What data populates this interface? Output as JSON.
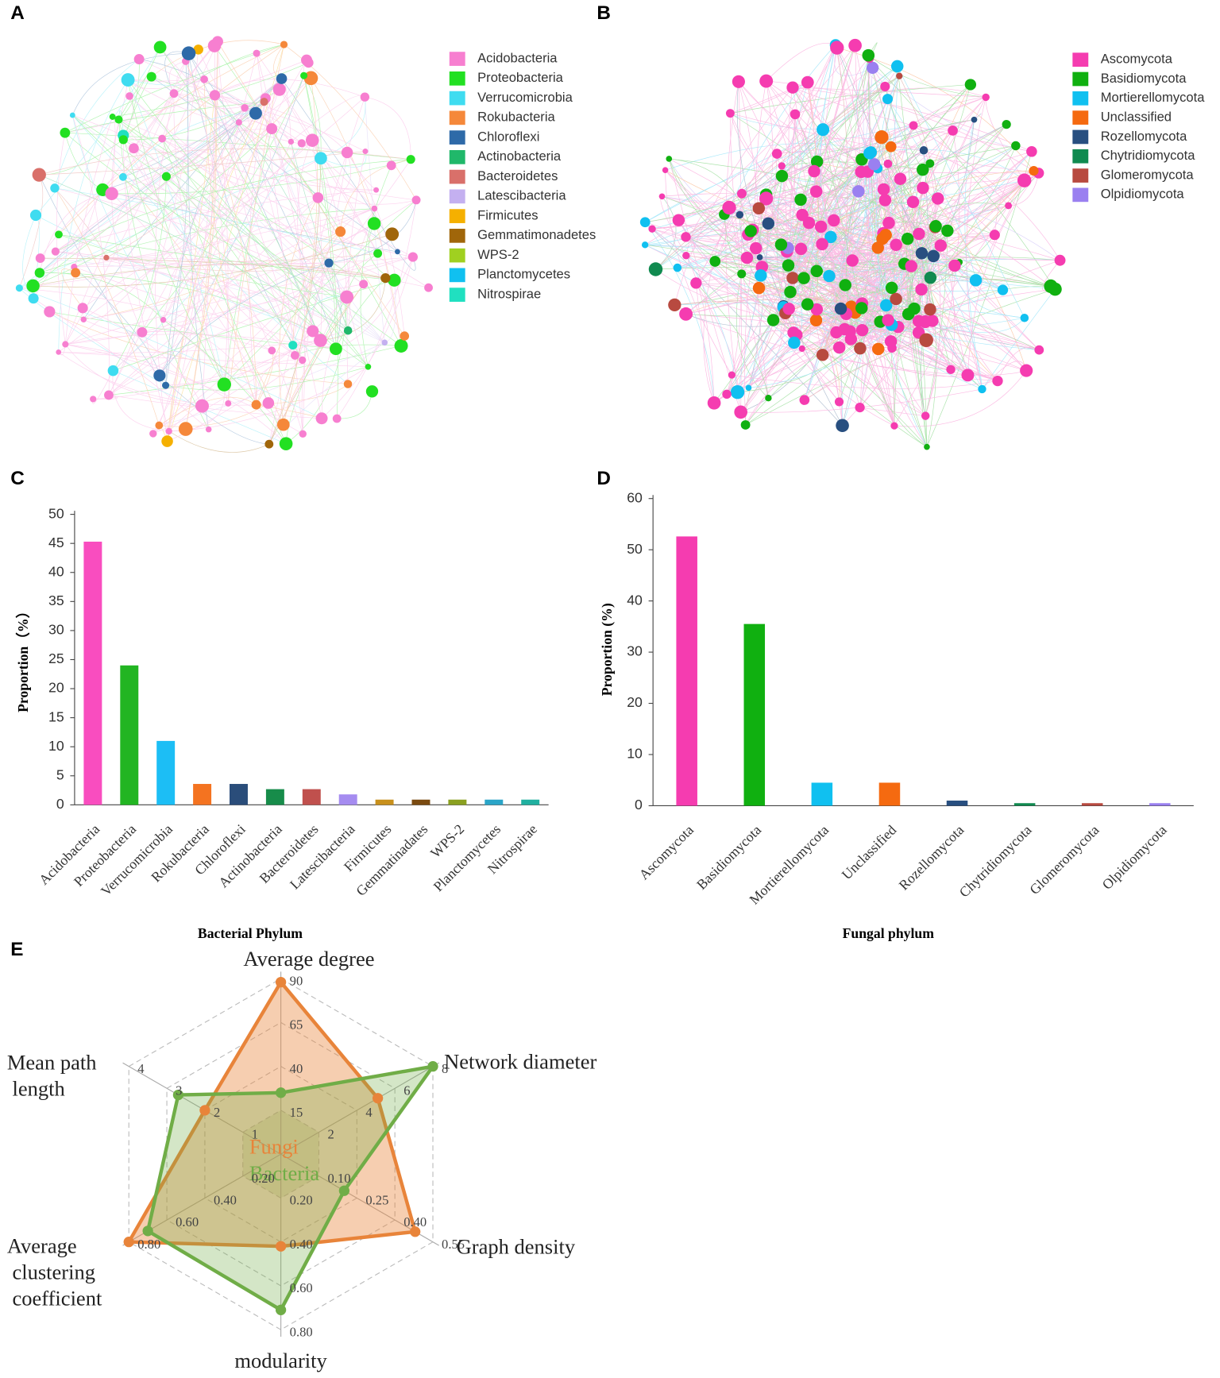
{
  "chart_data": [
    {
      "panel": "A",
      "type": "network",
      "series": [
        {
          "name": "Acidobacteria",
          "color": "#f77fd0"
        },
        {
          "name": "Proteobacteria",
          "color": "#22e022"
        },
        {
          "name": "Verrucomicrobia",
          "color": "#3fdcf0"
        },
        {
          "name": "Rokubacteria",
          "color": "#f5883a"
        },
        {
          "name": "Chloroflexi",
          "color": "#2e6aa8"
        },
        {
          "name": "Actinobacteria",
          "color": "#20b86a"
        },
        {
          "name": "Bacteroidetes",
          "color": "#d9706a"
        },
        {
          "name": "Latescibacteria",
          "color": "#c4b0f0"
        },
        {
          "name": "Firmicutes",
          "color": "#f5b000"
        },
        {
          "name": "Gemmatimonadetes",
          "color": "#a0660a"
        },
        {
          "name": "WPS-2",
          "color": "#a0d020"
        },
        {
          "name": "Planctomycetes",
          "color": "#10c0f0"
        },
        {
          "name": "Nitrospirae",
          "color": "#20e0c0"
        }
      ]
    },
    {
      "panel": "B",
      "type": "network",
      "series": [
        {
          "name": "Ascomycota",
          "color": "#f53cb0"
        },
        {
          "name": "Basidiomycota",
          "color": "#10b010"
        },
        {
          "name": "Mortierellomycota",
          "color": "#10c0f0"
        },
        {
          "name": "Unclassified",
          "color": "#f56a10"
        },
        {
          "name": "Rozellomycota",
          "color": "#284f80"
        },
        {
          "name": "Chytridiomycota",
          "color": "#108a50"
        },
        {
          "name": "Glomeromycota",
          "color": "#b84a40"
        },
        {
          "name": "Olpidiomycota",
          "color": "#9a80f0"
        }
      ]
    },
    {
      "panel": "C",
      "type": "bar",
      "x_label": "Bacterial Phylum",
      "y_label": "Proportion（%）",
      "categories": [
        "Acidobacteria",
        "Proteobacteria",
        "Verrucomicrobia",
        "Rokubacteria",
        "Chloroflexi",
        "Actinobacteria",
        "Bacteroidetes",
        "Latescibacteria",
        "Firmicutes",
        "Gemmatinadates",
        "WPS-2",
        "Planctomycetes",
        "Nitrospirae"
      ],
      "values": [
        45.3,
        24,
        11,
        3.6,
        3.6,
        2.7,
        2.7,
        1.8,
        0.9,
        0.9,
        0.9,
        0.9,
        0.9
      ],
      "colors": [
        "#f94dbf",
        "#22b522",
        "#1cbef5",
        "#f47320",
        "#2a4d7a",
        "#178c4a",
        "#c0504d",
        "#a58cf0",
        "#c8901c",
        "#7a4a10",
        "#8aa020",
        "#2aa5c8",
        "#20b0a0"
      ],
      "ylim": [
        0,
        50
      ],
      "yticks": [
        0,
        5,
        10,
        15,
        20,
        25,
        30,
        35,
        40,
        45,
        50
      ]
    },
    {
      "panel": "D",
      "type": "bar",
      "x_label": "Fungal phylum",
      "y_label": "Proportion (%)",
      "categories": [
        "Ascomycota",
        "Basidiomycota",
        "Mortierellomycota",
        "Unclassified",
        "Rozellomycota",
        "Chytridiomycota",
        "Glomeromycota",
        "Olpidiomycota"
      ],
      "values": [
        52.6,
        35.5,
        4.5,
        4.5,
        1,
        0.5,
        0.5,
        0.5
      ],
      "colors": [
        "#f53cb0",
        "#10b010",
        "#10c0f0",
        "#f56a10",
        "#284f80",
        "#108a50",
        "#b84a40",
        "#9a80f0"
      ],
      "ylim": [
        0,
        60
      ],
      "yticks": [
        0,
        10,
        20,
        30,
        40,
        50,
        60
      ]
    },
    {
      "panel": "E",
      "type": "radar",
      "axes": [
        {
          "name": "Average degree",
          "lim": [
            -10,
            90
          ],
          "ticks": [
            15,
            40,
            65,
            90
          ]
        },
        {
          "name": "Network diameter",
          "lim": [
            0,
            8
          ],
          "ticks": [
            2,
            4,
            6,
            8
          ]
        },
        {
          "name": "Graph density",
          "lim": [
            -0.05,
            0.55
          ],
          "ticks": [
            {
              "value": 0.1,
              "label": "0.10"
            },
            0.25,
            {
              "value": 0.4,
              "label": "0.40"
            },
            0.55
          ]
        },
        {
          "name": "modularity",
          "lim": [
            0,
            0.8
          ],
          "ticks": [
            {
              "value": 0.2,
              "label": "0.20"
            },
            {
              "value": 0.4,
              "label": "0.40"
            },
            {
              "value": 0.6,
              "label": "0.60"
            },
            {
              "value": 0.8,
              "label": "0.80"
            }
          ]
        },
        {
          "name": "Average clustering coefficient",
          "lim": [
            0,
            0.8
          ],
          "ticks": [
            {
              "value": 0.2,
              "label": "0.20"
            },
            {
              "value": 0.4,
              "label": "0.40"
            },
            {
              "value": 0.6,
              "label": "0.60"
            },
            {
              "value": 0.8,
              "label": "0.80"
            }
          ]
        },
        {
          "name": "Mean path length",
          "lim": [
            0,
            4
          ],
          "ticks": [
            1,
            2,
            3,
            4
          ]
        }
      ],
      "series": [
        {
          "name": "Fungi",
          "color": "#e8843a",
          "values": [
            88,
            5.1,
            0.48,
            0.42,
            0.8,
            2.0
          ]
        },
        {
          "name": "Bacteria",
          "color": "#70ad47",
          "values": [
            25,
            8,
            0.2,
            0.71,
            0.7,
            2.7
          ]
        }
      ]
    }
  ]
}
